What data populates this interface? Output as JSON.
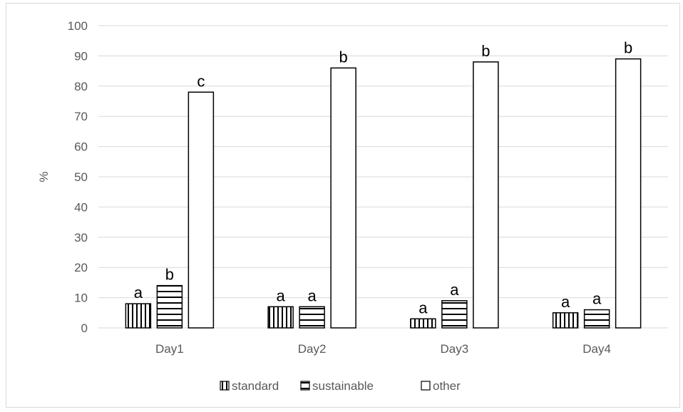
{
  "chart_data": {
    "type": "bar",
    "categories": [
      "Day1",
      "Day2",
      "Day3",
      "Day4"
    ],
    "series": [
      {
        "name": "standard",
        "pattern": "vertical-stripes",
        "values": [
          8,
          7,
          3,
          5
        ],
        "labels": [
          "a",
          "a",
          "a",
          "a"
        ]
      },
      {
        "name": "sustainable",
        "pattern": "horizontal-stripes",
        "values": [
          14,
          7,
          9,
          6
        ],
        "labels": [
          "b",
          "a",
          "a",
          "a"
        ]
      },
      {
        "name": "other",
        "pattern": "solid-white",
        "values": [
          78,
          86,
          88,
          89
        ],
        "labels": [
          "c",
          "b",
          "b",
          "b"
        ]
      }
    ],
    "ylabel": "%",
    "ylim": [
      0,
      100
    ],
    "yticks": [
      "0",
      "10",
      "20",
      "30",
      "40",
      "50",
      "60",
      "70",
      "80",
      "90",
      "100"
    ],
    "grid": true,
    "legend_position": "bottom"
  },
  "colors": {
    "bar_stroke": "#000000",
    "bar_fill": "#ffffff",
    "gridline": "#d9d9d9",
    "axis_text": "#595959"
  }
}
